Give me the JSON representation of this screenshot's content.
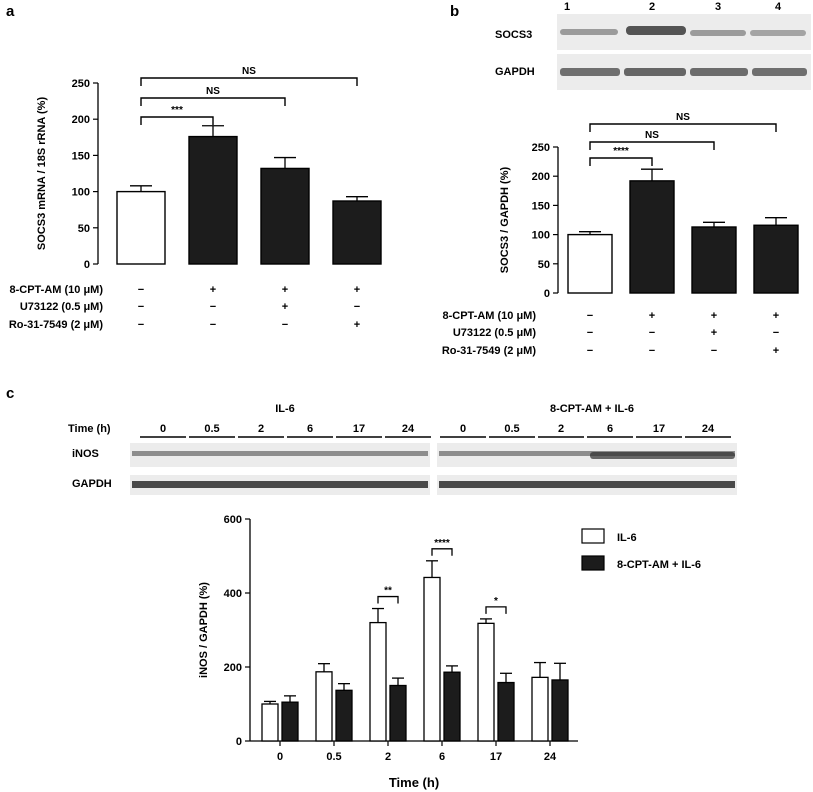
{
  "panels": {
    "a": "a",
    "b": "b",
    "c": "c"
  },
  "blot_b": {
    "lanes": [
      "1",
      "2",
      "3",
      "4"
    ],
    "rows": [
      "SOCS3",
      "GAPDH"
    ]
  },
  "blot_c": {
    "time_label": "Time (h)",
    "groups": [
      "IL-6",
      "8-CPT-AM + IL-6"
    ],
    "lanes": [
      "0",
      "0.5",
      "2",
      "6",
      "17",
      "24"
    ],
    "rows": [
      "iNOS",
      "GAPDH"
    ]
  },
  "treatments": {
    "rows": [
      "8-CPT-AM (10 μM)",
      "U73122 (0.5 μM)",
      "Ro-31-7549 (2 μM)"
    ],
    "signs": [
      [
        "−",
        "+",
        "+",
        "+"
      ],
      [
        "−",
        "−",
        "+",
        "−"
      ],
      [
        "−",
        "−",
        "−",
        "+"
      ]
    ]
  },
  "chart_data": [
    {
      "panel": "a",
      "type": "bar",
      "categories": [
        "1",
        "2",
        "3",
        "4"
      ],
      "values": [
        100,
        176,
        132,
        87
      ],
      "errors": [
        8,
        15,
        15,
        6
      ],
      "fills": [
        "#ffffff",
        "#1c1c1c",
        "#1c1c1c",
        "#1c1c1c"
      ],
      "ylabel": "SOCS3 mRNA / 18S rRNA (%)",
      "ylim": [
        0,
        250
      ],
      "yticks": [
        0,
        50,
        100,
        150,
        200,
        250
      ],
      "comparisons": [
        {
          "from": 0,
          "to": 3,
          "label": "NS"
        },
        {
          "from": 0,
          "to": 2,
          "label": "NS"
        },
        {
          "from": 0,
          "to": 1,
          "label": "***"
        }
      ]
    },
    {
      "panel": "b",
      "type": "bar",
      "categories": [
        "1",
        "2",
        "3",
        "4"
      ],
      "values": [
        100,
        192,
        113,
        116
      ],
      "errors": [
        5,
        20,
        8,
        13
      ],
      "fills": [
        "#ffffff",
        "#1c1c1c",
        "#1c1c1c",
        "#1c1c1c"
      ],
      "ylabel": "SOCS3 / GAPDH (%)",
      "ylim": [
        0,
        250
      ],
      "yticks": [
        0,
        50,
        100,
        150,
        200,
        250
      ],
      "comparisons": [
        {
          "from": 0,
          "to": 3,
          "label": "NS"
        },
        {
          "from": 0,
          "to": 2,
          "label": "NS"
        },
        {
          "from": 0,
          "to": 1,
          "label": "****"
        }
      ]
    },
    {
      "panel": "c",
      "type": "bar",
      "categories": [
        "0",
        "0.5",
        "2",
        "6",
        "17",
        "24"
      ],
      "series": [
        {
          "name": "IL-6",
          "fill": "#ffffff",
          "values": [
            100,
            187,
            320,
            442,
            318,
            172
          ],
          "errors": [
            7,
            22,
            38,
            45,
            12,
            40
          ]
        },
        {
          "name": "8-CPT-AM + IL-6",
          "fill": "#1c1c1c",
          "values": [
            105,
            137,
            150,
            186,
            158,
            165
          ],
          "errors": [
            17,
            18,
            20,
            17,
            25,
            45
          ]
        }
      ],
      "xlabel": "Time (h)",
      "ylabel": "iNOS / GAPDH (%)",
      "ylim": [
        0,
        600
      ],
      "yticks": [
        0,
        200,
        400,
        600
      ],
      "legend": "top-right",
      "significance": [
        {
          "category": 2,
          "label": "**"
        },
        {
          "category": 3,
          "label": "****"
        },
        {
          "category": 4,
          "label": "*"
        }
      ]
    }
  ]
}
